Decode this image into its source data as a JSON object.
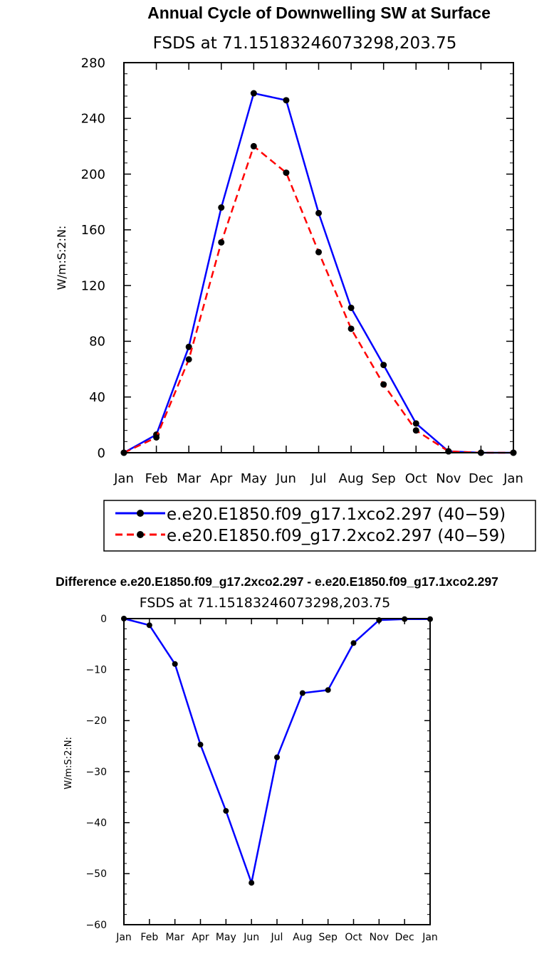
{
  "chart_data": [
    {
      "type": "line",
      "title": "Annual Cycle of Downwelling SW at Surface",
      "subtitle": "FSDS at 71.15183246073298,203.75",
      "ylabel": "W/m:S:2:N:",
      "xlabel": "",
      "categories": [
        "Jan",
        "Feb",
        "Mar",
        "Apr",
        "May",
        "Jun",
        "Jul",
        "Aug",
        "Sep",
        "Oct",
        "Nov",
        "Dec",
        "Jan"
      ],
      "ylim": [
        0,
        280
      ],
      "yticks": [
        0,
        40,
        80,
        120,
        160,
        200,
        240,
        280
      ],
      "grid": false,
      "legend": "bottom",
      "series": [
        {
          "name": "e.e20.E1850.f09_g17.1xco2.297 (40−59)",
          "color": "#0000ff",
          "dash": "solid",
          "values": [
            0,
            13,
            76,
            176,
            258,
            253,
            172,
            104,
            63,
            21,
            1,
            0,
            0
          ]
        },
        {
          "name": "e.e20.E1850.f09_g17.2xco2.297 (40−59)",
          "color": "#ff0000",
          "dash": "dashed",
          "values": [
            0,
            11,
            67,
            151,
            220,
            201,
            144,
            89,
            49,
            16,
            1,
            0,
            0
          ]
        }
      ]
    },
    {
      "type": "line",
      "title": "Difference e.e20.E1850.f09_g17.2xco2.297 - e.e20.E1850.f09_g17.1xco2.297",
      "subtitle": "FSDS at 71.15183246073298,203.75",
      "ylabel": "W/m:S:2:N:",
      "xlabel": "",
      "categories": [
        "Jan",
        "Feb",
        "Mar",
        "Apr",
        "May",
        "Jun",
        "Jul",
        "Aug",
        "Sep",
        "Oct",
        "Nov",
        "Dec",
        "Jan"
      ],
      "ylim": [
        -60,
        0
      ],
      "yticks": [
        -60,
        -50,
        -40,
        -30,
        -20,
        -10,
        0
      ],
      "ytick_labels": [
        "−60",
        "−50",
        "−40",
        "−30",
        "−20",
        "−10",
        "0"
      ],
      "grid": false,
      "series": [
        {
          "color": "#0000ff",
          "dash": "solid",
          "values": [
            0,
            -1.3,
            -8.9,
            -24.7,
            -37.7,
            -51.8,
            -27.2,
            -14.6,
            -14.0,
            -4.8,
            -0.3,
            -0.1,
            -0.1
          ]
        }
      ]
    }
  ]
}
